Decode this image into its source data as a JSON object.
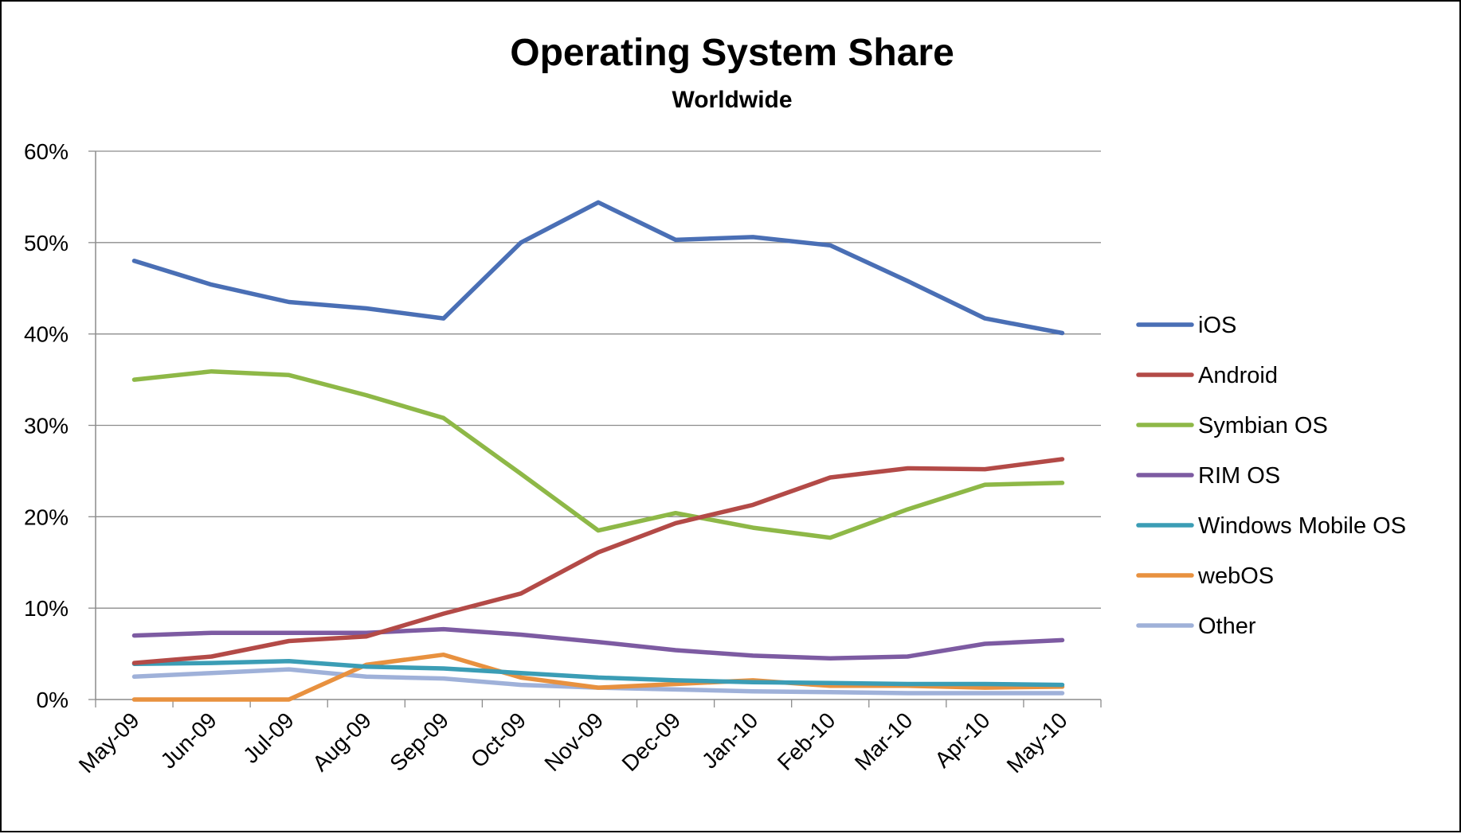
{
  "chart_data": {
    "type": "line",
    "title": "Operating System Share",
    "subtitle": "Worldwide",
    "xlabel": "",
    "ylabel": "",
    "categories": [
      "May-09",
      "Jun-09",
      "Jul-09",
      "Aug-09",
      "Sep-09",
      "Oct-09",
      "Nov-09",
      "Dec-09",
      "Jan-10",
      "Feb-10",
      "Mar-10",
      "Apr-10",
      "May-10"
    ],
    "ylim": [
      0,
      60
    ],
    "y_ticks": [
      "0%",
      "10%",
      "20%",
      "30%",
      "40%",
      "50%",
      "60%"
    ],
    "y_tick_values": [
      0,
      10,
      20,
      30,
      40,
      50,
      60
    ],
    "grid": true,
    "legend_position": "right",
    "series": [
      {
        "name": "iOS",
        "color": "#4a6fb5",
        "values": [
          48.0,
          45.4,
          43.5,
          42.8,
          41.7,
          50.0,
          54.4,
          50.3,
          50.6,
          49.7,
          45.8,
          41.7,
          40.1
        ]
      },
      {
        "name": "Android",
        "color": "#b34a47",
        "values": [
          4.0,
          4.7,
          6.4,
          6.9,
          9.4,
          11.6,
          16.1,
          19.3,
          21.3,
          24.3,
          25.3,
          25.2,
          26.3
        ]
      },
      {
        "name": "Symbian OS",
        "color": "#8eb847",
        "values": [
          35.0,
          35.9,
          35.5,
          33.3,
          30.8,
          24.7,
          18.5,
          20.4,
          18.8,
          17.7,
          20.8,
          23.5,
          23.7
        ]
      },
      {
        "name": "RIM OS",
        "color": "#7d5ba2",
        "values": [
          7.0,
          7.3,
          7.3,
          7.3,
          7.7,
          7.1,
          6.3,
          5.4,
          4.8,
          4.5,
          4.7,
          6.1,
          6.5
        ]
      },
      {
        "name": "Windows Mobile OS",
        "color": "#3b9db5",
        "values": [
          3.9,
          4.0,
          4.2,
          3.6,
          3.4,
          2.9,
          2.4,
          2.1,
          1.9,
          1.8,
          1.7,
          1.7,
          1.6
        ]
      },
      {
        "name": "webOS",
        "color": "#e8913f",
        "values": [
          0.0,
          0.0,
          0.0,
          3.8,
          4.9,
          2.4,
          1.3,
          1.7,
          2.1,
          1.5,
          1.5,
          1.3,
          1.4
        ]
      },
      {
        "name": "Other",
        "color": "#9fb1d9",
        "values": [
          2.5,
          2.9,
          3.3,
          2.5,
          2.3,
          1.6,
          1.3,
          1.1,
          0.9,
          0.8,
          0.7,
          0.7,
          0.7
        ]
      }
    ]
  }
}
